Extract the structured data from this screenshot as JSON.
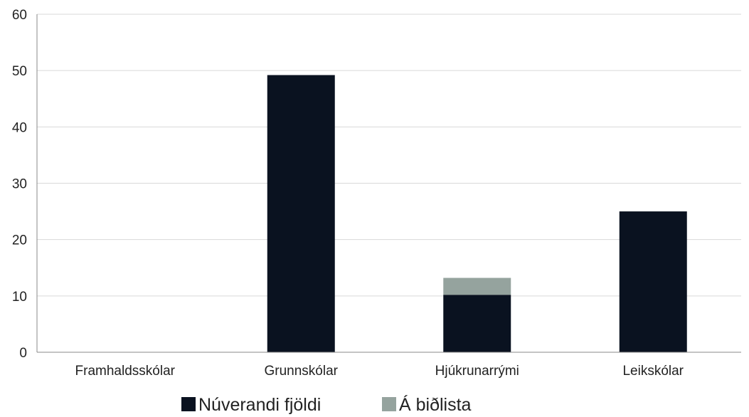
{
  "chart_data": {
    "type": "bar",
    "stacked": true,
    "categories": [
      "Framhaldsskólar",
      "Grunnskólar",
      "Hjúkrunarrými",
      "Leikskólar"
    ],
    "series": [
      {
        "name": "Núverandi fjöldi",
        "values": [
          0,
          49.2,
          10.2,
          25
        ],
        "color": "#0a1220"
      },
      {
        "name": "Á biðlista",
        "values": [
          0,
          0,
          3,
          0
        ],
        "color": "#95a39e"
      }
    ],
    "ylim": [
      0,
      60
    ],
    "yticks": [
      0,
      10,
      20,
      30,
      40,
      50,
      60
    ],
    "grid": true,
    "legend": "bottom-center",
    "colors": {
      "gridline": "#d9d9d9",
      "axis": "#888888"
    }
  }
}
